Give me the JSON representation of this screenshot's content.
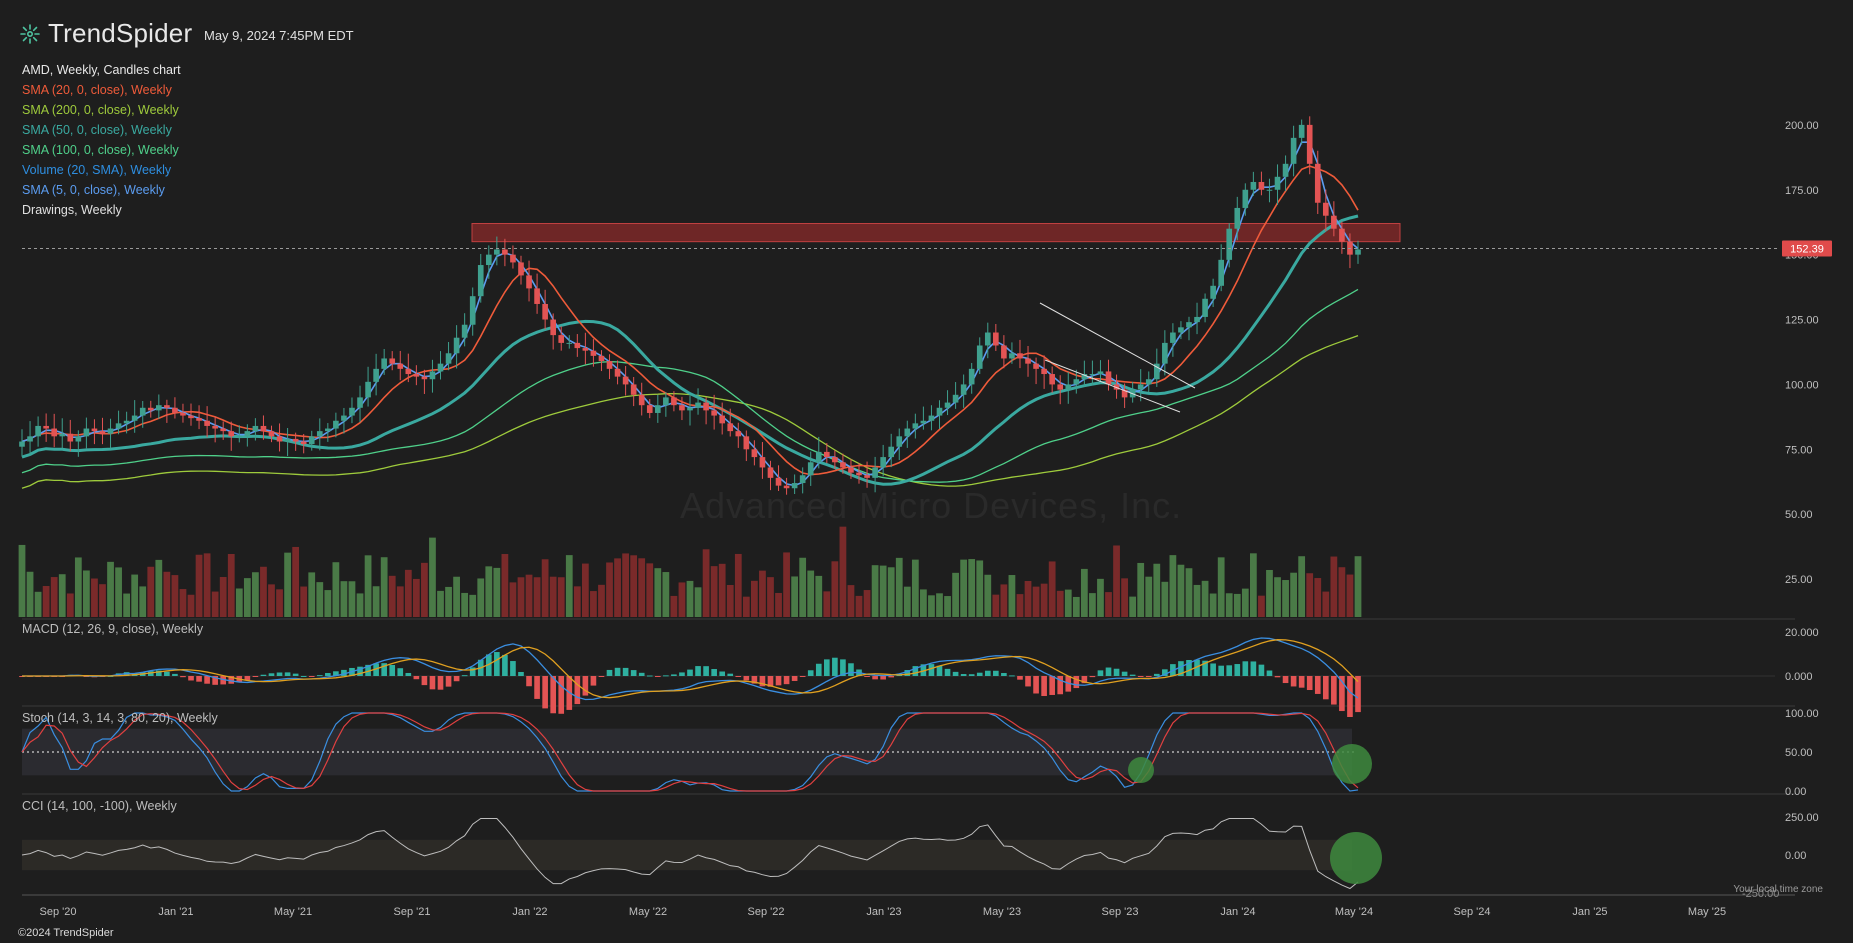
{
  "brand": {
    "name": "TrendSpider",
    "logo_icon": "trendspider-logo-icon"
  },
  "header": {
    "timestamp": "May 9, 2024 7:45PM EDT"
  },
  "legend": {
    "title": "AMD, Weekly, Candles chart",
    "items": [
      {
        "label": "SMA (20, 0, close), Weekly",
        "color": "#ef5b3a"
      },
      {
        "label": "SMA (200, 0, close), Weekly",
        "color": "#9ecb3c"
      },
      {
        "label": "SMA (50, 0, close), Weekly",
        "color": "#3aa9a0"
      },
      {
        "label": "SMA (100, 0, close), Weekly",
        "color": "#4fd08a"
      },
      {
        "label": "Volume (20, SMA), Weekly",
        "color": "#2e8ee0"
      },
      {
        "label": "SMA (5, 0, close), Weekly",
        "color": "#5b9cf0"
      },
      {
        "label": "Drawings, Weekly",
        "color": "#e0e0e0"
      }
    ]
  },
  "panes": {
    "macd_label": "MACD (12, 26, 9, close), Weekly",
    "stoch_label": "Stoch (14, 3, 14, 3, 80, 20), Weekly",
    "cci_label": "CCI (14, 100, -100), Weekly"
  },
  "watermark": "Advanced Micro Devices, Inc.",
  "footer": {
    "copyright": "©2024 TrendSpider",
    "tz_note": "Your local time zone"
  },
  "colors": {
    "background": "#1e1e1e",
    "up": "#3fa08e",
    "down": "#e35454",
    "volume_up": "#4a7a47",
    "volume_down": "#7a2a2a",
    "price_tag": "#e04b4b",
    "resistance_zone": "#8a2a2a",
    "highlight_circle": "#3e8a3e"
  },
  "chart_data": {
    "type": "candlestick",
    "symbol": "AMD",
    "timeframe": "Weekly",
    "last_price": 152.39,
    "price_axis": {
      "ticks": [
        "25.00",
        "50.00",
        "75.00",
        "100.00",
        "125.00",
        "150.00",
        "175.00",
        "200.00"
      ],
      "ylim": [
        10,
        225
      ]
    },
    "x_axis_ticks": [
      "Sep '20",
      "Jan '21",
      "May '21",
      "Sep '21",
      "Jan '22",
      "May '22",
      "Sep '22",
      "Jan '23",
      "May '23",
      "Sep '23",
      "Jan '24",
      "May '24",
      "Sep '24",
      "Jan '25",
      "May '25"
    ],
    "close_series": {
      "start_label": "Aug '20",
      "unit": "weekly close (USD)",
      "values": [
        78,
        80,
        84,
        83,
        80,
        81,
        78,
        80,
        83,
        82,
        81,
        83,
        85,
        86,
        88,
        91,
        90,
        92,
        91,
        89,
        88,
        87,
        86,
        84,
        83,
        82,
        80,
        80,
        82,
        84,
        82,
        80,
        78,
        79,
        78,
        77,
        80,
        82,
        83,
        86,
        88,
        91,
        95,
        101,
        106,
        110,
        108,
        106,
        104,
        103,
        102,
        105,
        108,
        112,
        118,
        123,
        134,
        146,
        150,
        152,
        150,
        147,
        142,
        137,
        131,
        125,
        119,
        116,
        116,
        114,
        113,
        111,
        109,
        106,
        103,
        100,
        96,
        92,
        89,
        92,
        95,
        92,
        90,
        91,
        93,
        90,
        88,
        85,
        82,
        80,
        75,
        72,
        68,
        64,
        61,
        60,
        62,
        65,
        70,
        74,
        72,
        70,
        68,
        66,
        65,
        64,
        68,
        72,
        76,
        80,
        83,
        85,
        86,
        88,
        91,
        93,
        96,
        100,
        106,
        115,
        120,
        115,
        110,
        112,
        110,
        108,
        106,
        104,
        100,
        98,
        100,
        102,
        104,
        104,
        105,
        100,
        98,
        95,
        98,
        100,
        102,
        108,
        116,
        120,
        122,
        124,
        126,
        133,
        138,
        148,
        160,
        168,
        175,
        178,
        175,
        175,
        180,
        185,
        195,
        200,
        185,
        170,
        165,
        160,
        155,
        150,
        152
      ]
    },
    "macd": {
      "ticks": [
        "20.000",
        "0.000"
      ]
    },
    "stoch": {
      "ticks": [
        "100.00",
        "50.00",
        "0.00"
      ],
      "upper": 80,
      "lower": 20
    },
    "cci": {
      "ticks": [
        "250.00",
        "0.00",
        "-250.00"
      ],
      "upper": 100,
      "lower": -100
    }
  }
}
